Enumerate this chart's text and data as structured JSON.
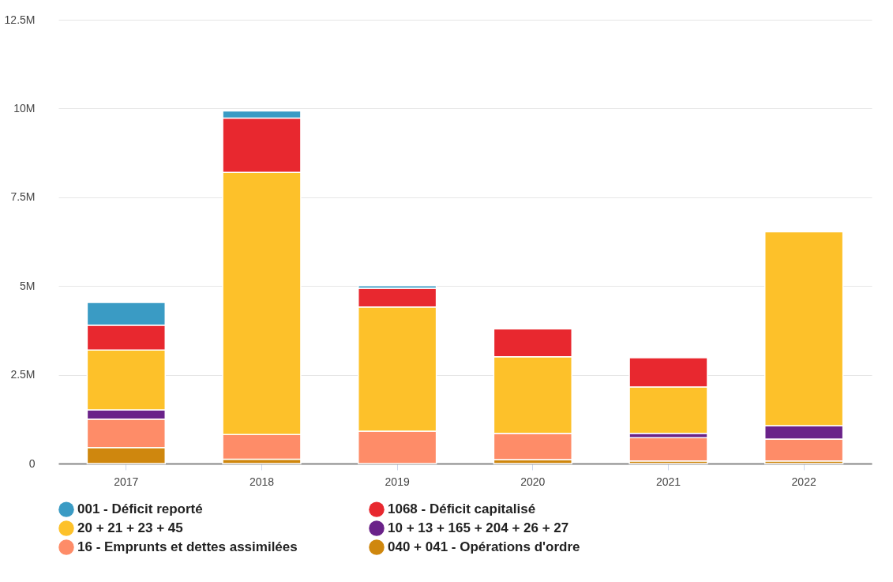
{
  "chart_data": {
    "type": "bar",
    "stacked": true,
    "categories": [
      "2017",
      "2018",
      "2019",
      "2020",
      "2021",
      "2022"
    ],
    "series": [
      {
        "name": "040 + 041 - Opérations d'ordre",
        "color": "#cf870e",
        "values": [
          450000,
          120000,
          0,
          110000,
          70000,
          70000
        ]
      },
      {
        "name": "16 - Emprunts et dettes assimilées",
        "color": "#fe8c68",
        "values": [
          800000,
          700000,
          910000,
          740000,
          660000,
          620000
        ]
      },
      {
        "name": "10 + 13 + 165 + 204 + 26 + 27",
        "color": "#6a2289",
        "values": [
          260000,
          0,
          0,
          0,
          120000,
          380000
        ]
      },
      {
        "name": "20 + 21 + 23 + 45",
        "color": "#fdc12a",
        "values": [
          1690000,
          7380000,
          3500000,
          2160000,
          1310000,
          5460000
        ]
      },
      {
        "name": "1068 - Déficit capitalisé",
        "color": "#e8282f",
        "values": [
          700000,
          1530000,
          530000,
          780000,
          820000,
          0
        ]
      },
      {
        "name": "001 - Déficit reporté",
        "color": "#3a9bc4",
        "values": [
          640000,
          200000,
          70000,
          0,
          0,
          0
        ]
      }
    ],
    "ylim": [
      0,
      12500000
    ],
    "yticks": [
      {
        "value": 0,
        "label": "0"
      },
      {
        "value": 2500000,
        "label": "2.5M"
      },
      {
        "value": 5000000,
        "label": "5M"
      },
      {
        "value": 7500000,
        "label": "7.5M"
      },
      {
        "value": 10000000,
        "label": "10M"
      },
      {
        "value": 12500000,
        "label": "12.5M"
      }
    ],
    "grid": "y",
    "legend": "bottom"
  }
}
